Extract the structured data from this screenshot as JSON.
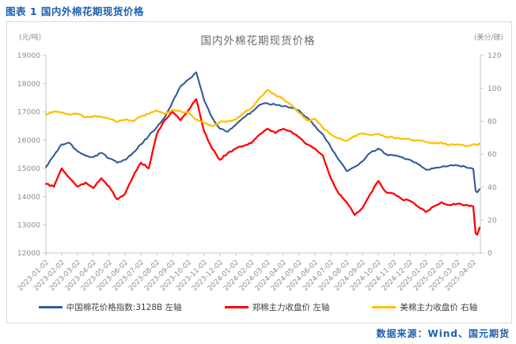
{
  "figure_caption": "图表 1 国内外棉花期现货价格",
  "source": "数据来源：Wind、国元期货",
  "colors": {
    "caption_blue": "#1E5FAE",
    "axis_line": "#C6C6C6",
    "tick_label": "#8c8c8c",
    "series_blue": "#2E5B9C",
    "series_red": "#FF0000",
    "series_yellow": "#FFC000"
  },
  "chart_data": {
    "type": "line",
    "title": "国内外棉花期现货价格",
    "grid": false,
    "legend_position": "bottom",
    "left_axis": {
      "unit": "(元/吨)",
      "min": 12000,
      "max": 19000,
      "step": 1000,
      "ticks": [
        12000,
        13000,
        14000,
        15000,
        16000,
        17000,
        18000,
        19000
      ]
    },
    "right_axis": {
      "unit": "(美分/磅)",
      "min": 0,
      "max": 120,
      "step": 20,
      "ticks": [
        0,
        20,
        40,
        60,
        80,
        100,
        120
      ]
    },
    "x_ticks": [
      "2023-01-02",
      "2023-02-02",
      "2023-03-02",
      "2023-04-02",
      "2023-05-02",
      "2023-06-02",
      "2023-07-02",
      "2023-08-02",
      "2023-09-02",
      "2023-10-02",
      "2023-11-02",
      "2023-12-02",
      "2024-01-02",
      "2024-02-02",
      "2024-03-02",
      "2024-04-02",
      "2024-05-02",
      "2024-06-02",
      "2024-07-02",
      "2024-08-02",
      "2024-09-02",
      "2024-10-02",
      "2024-11-02",
      "2024-12-02",
      "2025-01-02",
      "2025-02-02",
      "2025-03-02",
      "2025-04-02"
    ],
    "x_months": [
      0,
      0.5,
      1,
      1.5,
      2,
      2.5,
      3,
      3.5,
      4,
      4.5,
      5,
      5.5,
      6,
      6.5,
      7,
      7.5,
      8,
      8.5,
      9,
      9.5,
      10,
      10.5,
      11,
      11.5,
      12,
      12.5,
      13,
      13.5,
      14,
      14.5,
      15,
      15.5,
      16,
      16.5,
      17,
      17.5,
      18,
      18.5,
      19,
      19.5,
      20,
      20.5,
      21,
      21.5,
      22,
      22.5,
      23,
      23.5,
      24,
      24.5,
      25,
      25.5,
      26,
      26.5,
      27,
      27.15,
      27.25,
      27.4
    ],
    "series": [
      {
        "name": "中国棉花价格指数:3128B 左轴",
        "axis": "left",
        "color": "#2E5B9C",
        "values": [
          15050,
          15450,
          15850,
          15900,
          15600,
          15450,
          15400,
          15550,
          15350,
          15200,
          15300,
          15550,
          15850,
          16150,
          16450,
          16800,
          17350,
          17900,
          18150,
          18400,
          17400,
          16800,
          16400,
          16300,
          16550,
          16800,
          17000,
          17250,
          17300,
          17250,
          17200,
          17150,
          17050,
          16800,
          16500,
          16200,
          15750,
          15300,
          14900,
          15050,
          15250,
          15550,
          15700,
          15500,
          15450,
          15400,
          15300,
          15150,
          14950,
          15000,
          15050,
          15100,
          15100,
          15050,
          14980,
          14200,
          14150,
          14260
        ]
      },
      {
        "name": "郑棉主力收盘价 左轴",
        "axis": "left",
        "color": "#FF0000",
        "values": [
          14450,
          14350,
          15000,
          14650,
          14350,
          14500,
          14300,
          14650,
          14350,
          13900,
          14100,
          14700,
          15200,
          15000,
          16200,
          16700,
          17000,
          16700,
          17050,
          17450,
          16300,
          15700,
          15300,
          15550,
          15700,
          15800,
          15900,
          16200,
          16400,
          16250,
          16400,
          16300,
          16100,
          15850,
          15700,
          15450,
          14650,
          14100,
          13800,
          13350,
          13600,
          14100,
          14550,
          14150,
          14100,
          13900,
          13850,
          13650,
          13450,
          13650,
          13800,
          13700,
          13750,
          13700,
          13650,
          12700,
          12650,
          12900
        ]
      },
      {
        "name": "美棉主力收盘价 右轴",
        "axis": "right",
        "color": "#FFC000",
        "values": [
          84,
          86,
          85.5,
          84,
          84.5,
          82.5,
          83,
          82.5,
          81.5,
          79.5,
          81,
          80,
          83,
          84.5,
          86.5,
          84.5,
          87,
          86,
          85.5,
          81,
          79,
          77,
          79.5,
          80,
          81,
          85,
          88,
          94,
          99,
          96,
          93.5,
          90,
          85,
          80.5,
          81.5,
          76,
          72,
          69.5,
          68,
          71,
          72.5,
          71.5,
          72.5,
          70.5,
          70,
          69.5,
          69,
          68.5,
          67.5,
          66.5,
          67,
          65.5,
          66,
          65,
          66,
          66,
          65.5,
          66.5
        ]
      }
    ]
  }
}
